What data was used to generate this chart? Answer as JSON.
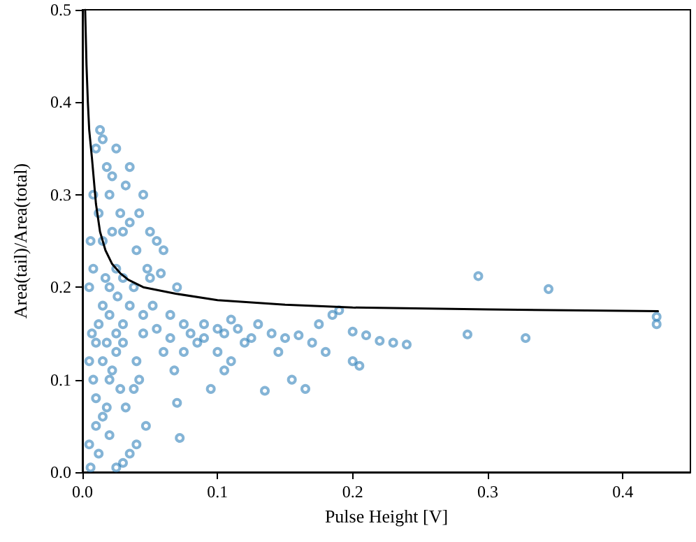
{
  "chart_data": {
    "type": "scatter",
    "xlabel": "Pulse Height [V]",
    "ylabel": "Area(tail)/Area(total)",
    "xlim": [
      0,
      0.45
    ],
    "ylim": [
      0,
      0.5
    ],
    "xticks": [
      {
        "value": 0,
        "label": "0.0"
      },
      {
        "value": 0.1,
        "label": "0.1"
      },
      {
        "value": 0.2,
        "label": "0.2"
      },
      {
        "value": 0.3,
        "label": "0.3"
      },
      {
        "value": 0.4,
        "label": "0.4"
      }
    ],
    "yticks": [
      {
        "value": 0,
        "label": "0.0"
      },
      {
        "value": 0.1,
        "label": "0.1"
      },
      {
        "value": 0.2,
        "label": "0.2"
      },
      {
        "value": 0.3,
        "label": "0.3"
      },
      {
        "value": 0.4,
        "label": "0.4"
      },
      {
        "value": 0.5,
        "label": "0.5"
      }
    ],
    "grid": false,
    "series": [
      {
        "type": "scatter",
        "marker": "circle",
        "color": "#1f77b4",
        "x": [
          0.293,
          0.345,
          0.285,
          0.328,
          0.425,
          0.425,
          0.22,
          0.21,
          0.2,
          0.23,
          0.24,
          0.19,
          0.185,
          0.175,
          0.16,
          0.165,
          0.155,
          0.135,
          0.12,
          0.115,
          0.13,
          0.14,
          0.15,
          0.105,
          0.1,
          0.11,
          0.09,
          0.085,
          0.08,
          0.075,
          0.07,
          0.072,
          0.068,
          0.06,
          0.065,
          0.07,
          0.06,
          0.055,
          0.05,
          0.058,
          0.048,
          0.052,
          0.045,
          0.04,
          0.042,
          0.038,
          0.047,
          0.04,
          0.035,
          0.03,
          0.025,
          0.02,
          0.015,
          0.01,
          0.008,
          0.012,
          0.006,
          0.005,
          0.007,
          0.005,
          0.006,
          0.008,
          0.01,
          0.013,
          0.015,
          0.018,
          0.02,
          0.022,
          0.025,
          0.028,
          0.03,
          0.032,
          0.035,
          0.04,
          0.042,
          0.045,
          0.05,
          0.035,
          0.025,
          0.02,
          0.015,
          0.012,
          0.01,
          0.015,
          0.02,
          0.025,
          0.03,
          0.035,
          0.03,
          0.025,
          0.02,
          0.018,
          0.022,
          0.028,
          0.032,
          0.018,
          0.01,
          0.005,
          0.015,
          0.012,
          0.008,
          0.017,
          0.022,
          0.026,
          0.03,
          0.038,
          0.045,
          0.055,
          0.065,
          0.075,
          0.09,
          0.1,
          0.11,
          0.125,
          0.145,
          0.17,
          0.18,
          0.2,
          0.205,
          0.105,
          0.095
        ],
        "values": [
          0.212,
          0.198,
          0.149,
          0.145,
          0.168,
          0.16,
          0.142,
          0.148,
          0.152,
          0.14,
          0.138,
          0.175,
          0.17,
          0.16,
          0.148,
          0.09,
          0.1,
          0.088,
          0.14,
          0.155,
          0.16,
          0.15,
          0.145,
          0.15,
          0.13,
          0.12,
          0.16,
          0.14,
          0.15,
          0.13,
          0.075,
          0.037,
          0.11,
          0.13,
          0.17,
          0.2,
          0.24,
          0.25,
          0.26,
          0.215,
          0.22,
          0.18,
          0.15,
          0.12,
          0.1,
          0.09,
          0.05,
          0.03,
          0.02,
          0.01,
          0.005,
          0.04,
          0.06,
          0.08,
          0.1,
          0.02,
          0.005,
          0.12,
          0.15,
          0.2,
          0.25,
          0.3,
          0.35,
          0.37,
          0.36,
          0.33,
          0.3,
          0.32,
          0.35,
          0.28,
          0.26,
          0.31,
          0.27,
          0.24,
          0.28,
          0.3,
          0.21,
          0.33,
          0.22,
          0.2,
          0.18,
          0.16,
          0.14,
          0.12,
          0.1,
          0.13,
          0.16,
          0.18,
          0.14,
          0.15,
          0.17,
          0.14,
          0.11,
          0.09,
          0.07,
          0.07,
          0.05,
          0.03,
          0.25,
          0.28,
          0.22,
          0.21,
          0.26,
          0.19,
          0.21,
          0.2,
          0.17,
          0.155,
          0.145,
          0.16,
          0.145,
          0.155,
          0.165,
          0.145,
          0.13,
          0.14,
          0.13,
          0.12,
          0.115,
          0.11,
          0.09
        ]
      },
      {
        "type": "line",
        "marker": "none",
        "line_style": "solid",
        "color": "#000000",
        "x": [
          0.002,
          0.003,
          0.004,
          0.005,
          0.007,
          0.01,
          0.013,
          0.017,
          0.022,
          0.028,
          0.034,
          0.045,
          0.069,
          0.1,
          0.15,
          0.2,
          0.3,
          0.426
        ],
        "values": [
          0.5,
          0.44,
          0.4,
          0.37,
          0.34,
          0.29,
          0.26,
          0.24,
          0.225,
          0.215,
          0.208,
          0.2,
          0.193,
          0.186,
          0.181,
          0.178,
          0.176,
          0.174
        ]
      }
    ]
  }
}
